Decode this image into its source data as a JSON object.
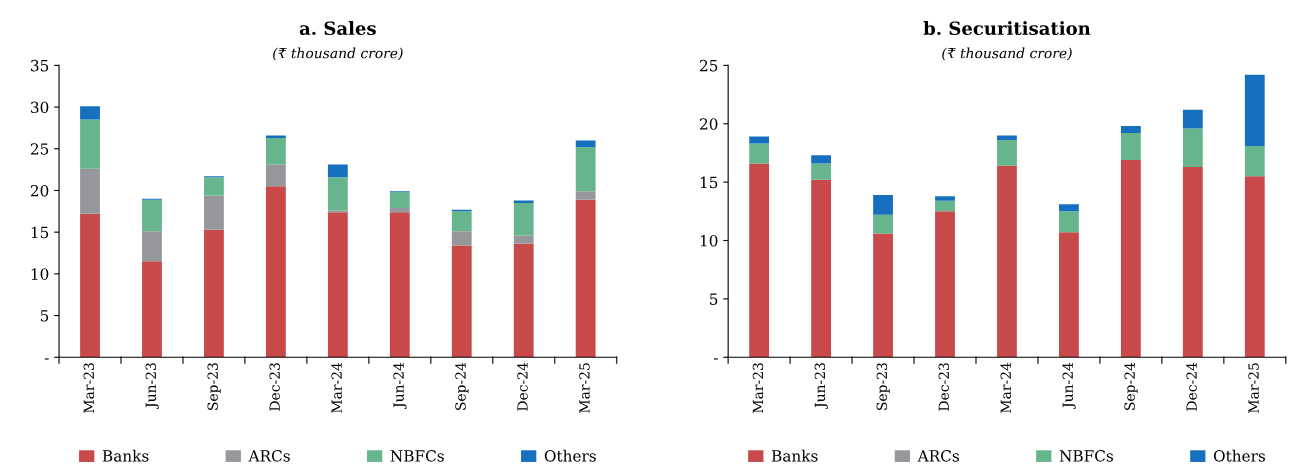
{
  "chart_data": [
    {
      "type": "bar",
      "stacked": true,
      "title": "a. Sales",
      "subtitle": "(₹ thousand crore)",
      "categories": [
        "Mar-23",
        "Jun-23",
        "Sep-23",
        "Dec-23",
        "Mar-24",
        "Jun-24",
        "Sep-24",
        "Dec-24",
        "Mar-25"
      ],
      "series": [
        {
          "name": "Banks",
          "color": "#c8494a",
          "values": [
            17.2,
            11.5,
            15.3,
            20.5,
            17.4,
            17.4,
            13.4,
            13.6,
            18.9
          ]
        },
        {
          "name": "ARCs",
          "color": "#96979a",
          "values": [
            5.4,
            3.6,
            4.1,
            2.6,
            0.2,
            0.5,
            1.7,
            1.0,
            1.0
          ]
        },
        {
          "name": "NBFCs",
          "color": "#66b58c",
          "values": [
            5.9,
            3.8,
            2.2,
            3.2,
            4.0,
            1.9,
            2.4,
            3.9,
            5.3
          ]
        },
        {
          "name": "Others",
          "color": "#1670bf",
          "values": [
            1.6,
            0.1,
            0.1,
            0.3,
            1.5,
            0.1,
            0.2,
            0.3,
            0.8
          ]
        }
      ],
      "ylim": [
        0,
        35
      ],
      "yticks": [
        {
          "value": 0,
          "label": "-"
        },
        5,
        10,
        15,
        20,
        25,
        30,
        35
      ],
      "grid": false,
      "legend": "bottom"
    },
    {
      "type": "bar",
      "stacked": true,
      "title": "b. Securitisation",
      "subtitle": "(₹ thousand crore)",
      "categories": [
        "Mar-23",
        "Jun-23",
        "Sep-23",
        "Dec-23",
        "Mar-24",
        "Jun-24",
        "Sep-24",
        "Dec-24",
        "Mar-25"
      ],
      "series": [
        {
          "name": "Banks",
          "color": "#c8494a",
          "values": [
            16.6,
            15.2,
            10.6,
            12.5,
            16.4,
            10.7,
            16.9,
            16.3,
            15.5
          ]
        },
        {
          "name": "ARCs",
          "color": "#96979a",
          "values": [
            0,
            0,
            0,
            0,
            0,
            0,
            0,
            0,
            0
          ]
        },
        {
          "name": "NBFCs",
          "color": "#66b58c",
          "values": [
            1.7,
            1.4,
            1.6,
            0.9,
            2.2,
            1.8,
            2.3,
            3.3,
            2.6
          ]
        },
        {
          "name": "Others",
          "color": "#1670bf",
          "values": [
            0.6,
            0.7,
            1.7,
            0.4,
            0.4,
            0.6,
            0.6,
            1.6,
            6.1
          ]
        }
      ],
      "ylim": [
        0,
        25
      ],
      "yticks": [
        {
          "value": 0,
          "label": "-"
        },
        5,
        10,
        15,
        20,
        25
      ],
      "grid": false,
      "legend": "bottom"
    }
  ]
}
